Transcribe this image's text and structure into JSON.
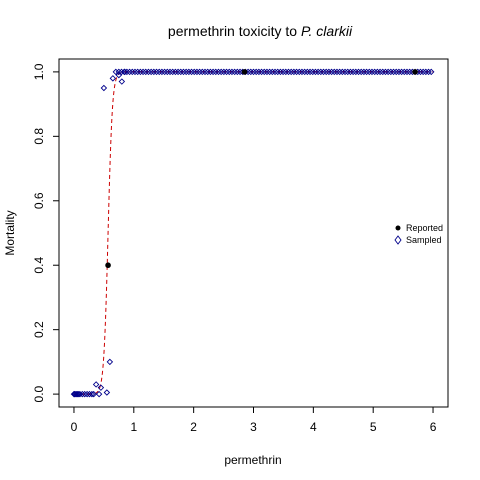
{
  "chart_data": {
    "type": "scatter",
    "title_prefix": "permethrin toxicity to ",
    "title_species": "P. clarkii",
    "xlabel": "permethrin",
    "ylabel": "Mortality",
    "xlim": [
      -0.25,
      6.25
    ],
    "ylim": [
      -0.04,
      1.04
    ],
    "xticks": [
      0,
      1,
      2,
      3,
      4,
      5,
      6
    ],
    "yticks": [
      0.0,
      0.2,
      0.4,
      0.6,
      0.8,
      1.0
    ],
    "ytick_labels": [
      "0.0",
      "0.2",
      "0.4",
      "0.6",
      "0.8",
      "1.0"
    ],
    "legend_position": "right",
    "colors": {
      "reported": "#000000",
      "sampled": "#00008b",
      "fit_line": "#cc0000"
    },
    "series": [
      {
        "name": "Reported",
        "marker": "filled-circle",
        "points": [
          [
            0.57,
            0.4
          ],
          [
            2.85,
            1.0
          ],
          [
            5.7,
            1.0
          ]
        ]
      },
      {
        "name": "Sampled",
        "marker": "open-diamond",
        "points": [
          [
            0.0,
            0.0
          ],
          [
            0.01,
            0.0
          ],
          [
            0.02,
            0.0
          ],
          [
            0.04,
            0.0
          ],
          [
            0.06,
            0.0
          ],
          [
            0.08,
            0.0
          ],
          [
            0.1,
            0.0
          ],
          [
            0.14,
            0.0
          ],
          [
            0.18,
            0.0
          ],
          [
            0.22,
            0.0
          ],
          [
            0.26,
            0.0
          ],
          [
            0.3,
            0.0
          ],
          [
            0.33,
            0.0
          ],
          [
            0.37,
            0.03
          ],
          [
            0.42,
            0.0
          ],
          [
            0.45,
            0.02
          ],
          [
            0.5,
            0.95
          ],
          [
            0.55,
            0.005
          ],
          [
            0.6,
            0.1
          ],
          [
            0.65,
            0.98
          ],
          [
            0.7,
            1.0
          ],
          [
            0.75,
            0.99
          ],
          [
            0.8,
            0.97
          ],
          [
            0.85,
            1.0
          ]
        ],
        "dense_ones_range": [
          0.75,
          6.0
        ],
        "dense_ones_step": 0.045
      }
    ],
    "fit_curve": {
      "style": "dashed",
      "type": "logistic",
      "midpoint": 0.57,
      "slope": 28
    }
  }
}
